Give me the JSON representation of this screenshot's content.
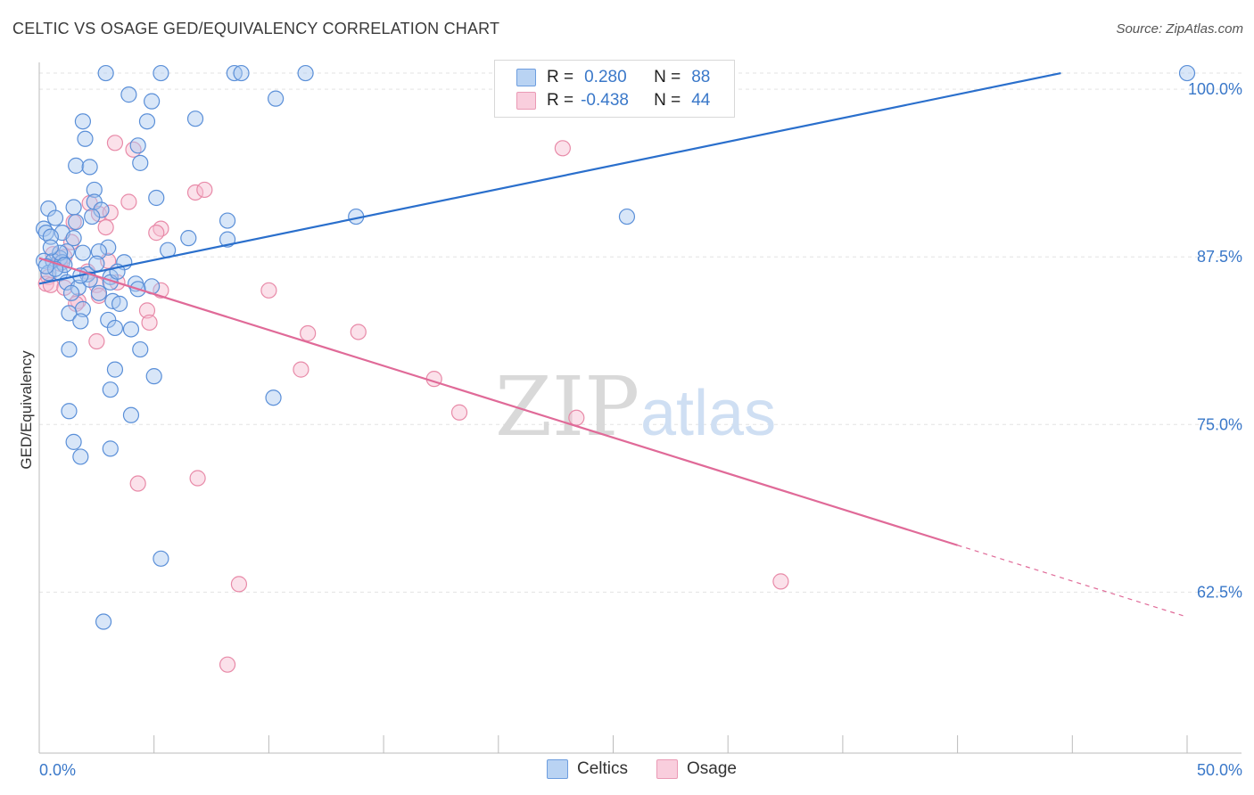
{
  "title": "CELTIC VS OSAGE GED/EQUIVALENCY CORRELATION CHART",
  "source": "Source: ZipAtlas.com",
  "watermark": {
    "zip": "ZIP",
    "atlas": "atlas"
  },
  "legend": {
    "series1": {
      "r_label": "R =",
      "r_value": "0.280",
      "n_label": "N =",
      "n_value": "88"
    },
    "series2": {
      "r_label": "R =",
      "r_value": "-0.438",
      "n_label": "N =",
      "n_value": "44"
    }
  },
  "colors": {
    "blue_fill": "#a8c8f0",
    "blue_stroke": "#5a8fd8",
    "blue_line": "#2a6fcc",
    "pink_fill": "#f6bcd0",
    "pink_stroke": "#e88aa8",
    "pink_line": "#e06a98",
    "tick_text": "#3a78c9"
  },
  "chart_data": {
    "type": "scatter",
    "xlabel": "",
    "ylabel": "GED/Equivalency",
    "xlim": [
      0,
      50
    ],
    "ylim": [
      50.5,
      102
    ],
    "x_tick_labels": [
      {
        "value": 0,
        "label": "0.0%"
      },
      {
        "value": 50,
        "label": "50.0%"
      }
    ],
    "y_tick_labels": [
      {
        "value": 100,
        "label": "100.0%"
      },
      {
        "value": 87.5,
        "label": "87.5%"
      },
      {
        "value": 75,
        "label": "75.0%"
      },
      {
        "value": 62.5,
        "label": "62.5%"
      }
    ],
    "series": [
      {
        "name": "Celtics",
        "trend": {
          "x0": 0,
          "y0": 85.5,
          "x1": 44.5,
          "y1": 101.2,
          "dash_to": 44.5
        },
        "points": [
          [
            2.9,
            101.2
          ],
          [
            5.3,
            101.2
          ],
          [
            8.5,
            101.2
          ],
          [
            8.8,
            101.2
          ],
          [
            11.6,
            101.2
          ],
          [
            50.0,
            101.2
          ],
          [
            3.9,
            99.6
          ],
          [
            4.9,
            99.1
          ],
          [
            10.3,
            99.3
          ],
          [
            1.9,
            97.6
          ],
          [
            4.7,
            97.6
          ],
          [
            6.8,
            97.8
          ],
          [
            2.0,
            96.3
          ],
          [
            4.3,
            95.8
          ],
          [
            4.4,
            94.5
          ],
          [
            1.6,
            94.3
          ],
          [
            2.2,
            94.2
          ],
          [
            2.4,
            92.5
          ],
          [
            5.1,
            91.9
          ],
          [
            2.4,
            91.6
          ],
          [
            0.4,
            91.1
          ],
          [
            1.5,
            91.2
          ],
          [
            2.7,
            91.0
          ],
          [
            0.7,
            90.4
          ],
          [
            2.3,
            90.5
          ],
          [
            8.2,
            90.2
          ],
          [
            13.8,
            90.5
          ],
          [
            25.6,
            90.5
          ],
          [
            1.6,
            90.1
          ],
          [
            0.2,
            89.6
          ],
          [
            0.3,
            89.3
          ],
          [
            1.0,
            89.3
          ],
          [
            0.5,
            89.0
          ],
          [
            1.5,
            88.9
          ],
          [
            6.5,
            88.9
          ],
          [
            8.2,
            88.8
          ],
          [
            3.0,
            88.2
          ],
          [
            5.6,
            88.0
          ],
          [
            1.2,
            87.9
          ],
          [
            1.9,
            87.8
          ],
          [
            2.6,
            87.9
          ],
          [
            0.9,
            87.4
          ],
          [
            0.2,
            87.2
          ],
          [
            0.6,
            87.2
          ],
          [
            1.0,
            87.1
          ],
          [
            3.7,
            87.1
          ],
          [
            0.4,
            86.3
          ],
          [
            0.9,
            86.3
          ],
          [
            2.1,
            86.2
          ],
          [
            3.1,
            86.0
          ],
          [
            1.2,
            85.6
          ],
          [
            3.1,
            85.6
          ],
          [
            1.7,
            85.2
          ],
          [
            4.2,
            85.5
          ],
          [
            4.3,
            85.1
          ],
          [
            4.9,
            85.3
          ],
          [
            1.4,
            84.8
          ],
          [
            2.6,
            84.8
          ],
          [
            3.2,
            84.2
          ],
          [
            3.5,
            84.0
          ],
          [
            1.9,
            83.6
          ],
          [
            1.3,
            83.3
          ],
          [
            3.0,
            82.8
          ],
          [
            1.8,
            82.7
          ],
          [
            4.0,
            82.1
          ],
          [
            3.3,
            82.2
          ],
          [
            1.3,
            80.6
          ],
          [
            4.4,
            80.6
          ],
          [
            3.3,
            79.1
          ],
          [
            5.0,
            78.6
          ],
          [
            3.1,
            77.6
          ],
          [
            10.2,
            77.0
          ],
          [
            1.3,
            76.0
          ],
          [
            4.0,
            75.7
          ],
          [
            1.5,
            73.7
          ],
          [
            3.1,
            73.2
          ],
          [
            1.8,
            72.6
          ],
          [
            5.3,
            65.0
          ],
          [
            2.8,
            60.3
          ],
          [
            0.9,
            87.8
          ],
          [
            0.5,
            88.2
          ],
          [
            1.1,
            86.9
          ],
          [
            2.2,
            85.8
          ],
          [
            0.7,
            86.6
          ],
          [
            3.4,
            86.4
          ],
          [
            1.8,
            86.1
          ],
          [
            2.5,
            87.0
          ],
          [
            0.3,
            86.8
          ]
        ]
      },
      {
        "name": "Osage",
        "trend": {
          "x0": 0,
          "y0": 87.4,
          "x1": 40.0,
          "y1": 66.0,
          "dash_to": 50.0
        },
        "points": [
          [
            3.3,
            96.0
          ],
          [
            4.1,
            95.5
          ],
          [
            22.8,
            95.6
          ],
          [
            6.8,
            92.3
          ],
          [
            7.2,
            92.5
          ],
          [
            2.2,
            91.5
          ],
          [
            3.9,
            91.6
          ],
          [
            2.6,
            90.7
          ],
          [
            3.1,
            90.8
          ],
          [
            1.5,
            90.1
          ],
          [
            5.3,
            89.6
          ],
          [
            5.1,
            89.3
          ],
          [
            2.9,
            89.7
          ],
          [
            1.4,
            88.6
          ],
          [
            0.6,
            87.7
          ],
          [
            1.1,
            87.5
          ],
          [
            3.0,
            87.2
          ],
          [
            0.9,
            87.0
          ],
          [
            2.1,
            86.4
          ],
          [
            0.4,
            86.0
          ],
          [
            0.3,
            85.5
          ],
          [
            0.5,
            85.4
          ],
          [
            1.1,
            85.2
          ],
          [
            3.4,
            85.6
          ],
          [
            2.5,
            85.4
          ],
          [
            10.0,
            85.0
          ],
          [
            5.3,
            85.0
          ],
          [
            2.6,
            84.6
          ],
          [
            1.7,
            84.2
          ],
          [
            1.6,
            84.0
          ],
          [
            4.7,
            83.5
          ],
          [
            4.8,
            82.6
          ],
          [
            11.7,
            81.8
          ],
          [
            13.9,
            81.9
          ],
          [
            2.5,
            81.2
          ],
          [
            11.4,
            79.1
          ],
          [
            17.2,
            78.4
          ],
          [
            18.3,
            75.9
          ],
          [
            23.4,
            75.5
          ],
          [
            6.9,
            71.0
          ],
          [
            4.3,
            70.6
          ],
          [
            8.7,
            63.1
          ],
          [
            32.3,
            63.3
          ],
          [
            8.2,
            57.1
          ]
        ]
      }
    ]
  }
}
